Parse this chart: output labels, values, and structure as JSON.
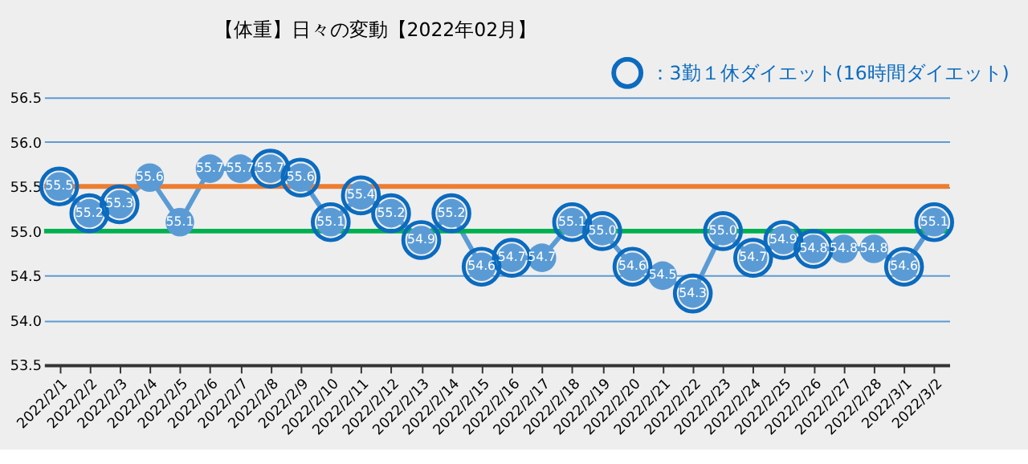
{
  "chart_data": {
    "type": "line",
    "title": "【体重】日々の変動【2022年02月】",
    "categories": [
      "2022/2/1",
      "2022/2/2",
      "2022/2/3",
      "2022/2/4",
      "2022/2/5",
      "2022/2/6",
      "2022/2/7",
      "2022/2/8",
      "2022/2/9",
      "2022/2/10",
      "2022/2/11",
      "2022/2/12",
      "2022/2/13",
      "2022/2/14",
      "2022/2/15",
      "2022/2/16",
      "2022/2/17",
      "2022/2/18",
      "2022/2/19",
      "2022/2/20",
      "2022/2/21",
      "2022/2/22",
      "2022/2/23",
      "2022/2/24",
      "2022/2/25",
      "2022/2/26",
      "2022/2/27",
      "2022/2/28",
      "2022/3/1",
      "2022/3/2"
    ],
    "series": [
      {
        "color": "#5b9bd5",
        "marker": "circle",
        "values": [
          55.5,
          55.2,
          55.3,
          55.6,
          55.1,
          55.7,
          55.7,
          55.7,
          55.6,
          55.1,
          55.4,
          55.2,
          54.9,
          55.2,
          54.6,
          54.7,
          54.7,
          55.1,
          55.0,
          54.6,
          54.5,
          54.3,
          55.0,
          54.7,
          54.9,
          54.8,
          54.8,
          54.8,
          54.6,
          55.1
        ],
        "value_labels": [
          "55.5",
          "55.2",
          "55.3",
          "55.6",
          "55.1",
          "55.7",
          "55.7",
          "55.7",
          "55.6",
          "55.1",
          "55.4",
          "55.2",
          "54.9",
          "55.2",
          "54.6",
          "54.7",
          "54.7",
          "55.1",
          "55.0",
          "54.6",
          "54.5",
          "54.3",
          "55.0",
          "54.7",
          "54.9",
          "54.8",
          "54.8",
          "54.8",
          "54.6",
          "55.1"
        ]
      },
      {
        "type": "scatter",
        "name": "：3勤１休ダイエット(16時間ダイエット)",
        "color": "#0b6bbf",
        "marker": "circle",
        "values": [
          55.5,
          55.2,
          55.3,
          null,
          null,
          null,
          null,
          55.7,
          55.6,
          55.1,
          55.4,
          55.2,
          54.9,
          55.2,
          54.6,
          54.7,
          null,
          55.1,
          55.0,
          54.6,
          null,
          54.3,
          55.0,
          54.7,
          54.9,
          54.8,
          null,
          null,
          54.6,
          55.1
        ]
      }
    ],
    "ylim": [
      53.5,
      56.5
    ],
    "yticks": [
      53.5,
      {
        "value": 54,
        "label": "54.0"
      },
      54.5,
      {
        "value": 55,
        "label": "55.0"
      },
      55.5,
      {
        "value": 56,
        "label": "56.0"
      },
      56.5
    ],
    "grid": "y",
    "legend": "top right",
    "ref_lines": [
      {
        "axis": "y",
        "value": 55.5,
        "color": "#ed7d31"
      },
      {
        "axis": "y",
        "value": 55.0,
        "color": "#00b050"
      }
    ]
  }
}
